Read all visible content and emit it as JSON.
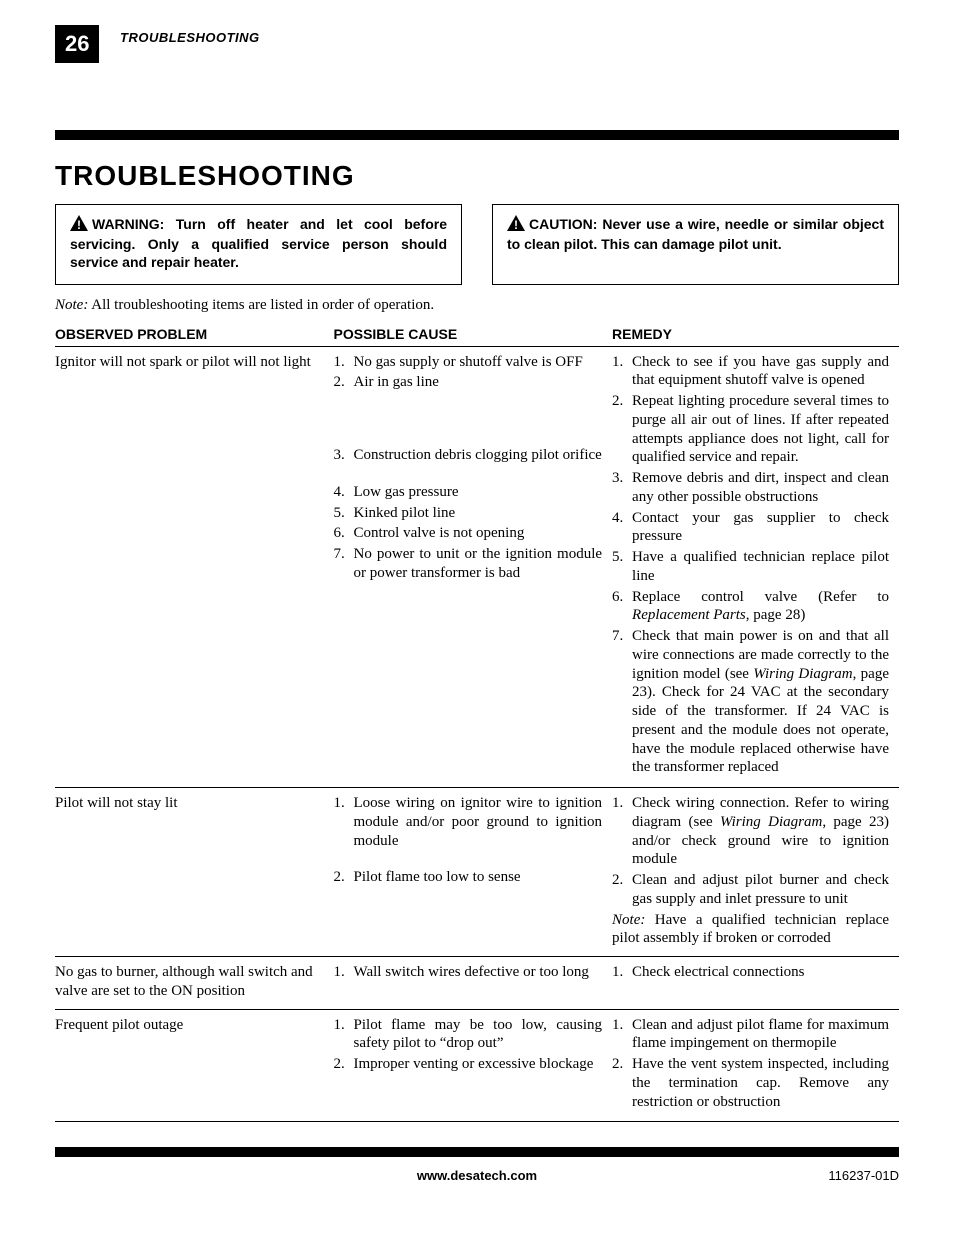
{
  "page": {
    "number": "26",
    "running_head": "TROUBLESHOOTING",
    "section_title": "TROUBLESHOOTING"
  },
  "callouts": {
    "warning_label": "WARNING:",
    "warning_text": "Turn off heater and let cool before servicing. Only a qualified service person should service and repair heater.",
    "caution_label": "CAUTION:",
    "caution_text": "Never use a wire, needle or similar object to clean pilot. This can damage pilot unit."
  },
  "note": {
    "label": "Note:",
    "text": "All troubleshooting items are listed in order of operation."
  },
  "columns": {
    "problem": "OBSERVED PROBLEM",
    "cause": "POSSIBLE CAUSE",
    "remedy": "REMEDY"
  },
  "rows": [
    {
      "problem": "Ignitor will not spark or pilot will not light",
      "causes": [
        "No gas supply or shutoff valve is OFF",
        "Air in gas line",
        "Construction debris clogging pilot orifice",
        "Low gas pressure",
        "Kinked pilot line",
        "Control valve is not opening",
        "No power to unit or the ignition module or power transformer is bad"
      ],
      "cause_gaps": {
        "1": 3,
        "2": 1,
        "3": 0,
        "4": 0,
        "5": 0,
        "6": 0
      },
      "remedies": [
        {
          "text": "Check to see if you have gas supply and that equipment shutoff valve is opened"
        },
        {
          "text": "Repeat lighting procedure several times to purge all air out of lines. If after repeated attempts appliance does not light, call for qualified service and repair."
        },
        {
          "text": "Remove debris and dirt, inspect and clean any other possible obstructions"
        },
        {
          "text": "Contact your gas supplier to check pressure"
        },
        {
          "text": "Have a qualified technician replace pilot line"
        },
        {
          "pre": "Replace control valve (Refer to ",
          "ital": "Replacement Parts",
          "post": ", page 28)"
        },
        {
          "pre": "Check that main power is on and that all wire connections are made correctly to the ignition model (see ",
          "ital": "Wiring Diagram",
          "post": ", page 23). Check for 24 VAC at the secondary side of the transformer. If 24 VAC is present and the module does not operate, have the module replaced otherwise have the transformer replaced"
        }
      ]
    },
    {
      "problem": "Pilot will not stay lit",
      "causes": [
        "Loose wiring on ignitor wire to ignition module and/or poor ground to ignition module",
        "Pilot flame too low to sense"
      ],
      "cause_gaps": {
        "0": 1
      },
      "remedies": [
        {
          "pre": "Check wiring connection. Refer to wiring diagram (see ",
          "ital": "Wiring Diagram",
          "post": ", page 23) and/or check ground wire to ignition module"
        },
        {
          "text": "Clean and adjust pilot burner and check gas supply and inlet pressure to unit"
        }
      ],
      "remedy_note": {
        "label": "Note:",
        "text": "Have a qualified technician replace pilot assembly if broken or corroded"
      }
    },
    {
      "problem": "No gas to burner, although wall switch and valve are set to the ON position",
      "causes": [
        "Wall switch wires defective or too long"
      ],
      "remedies": [
        {
          "text": "Check electrical connections"
        }
      ]
    },
    {
      "problem": "Frequent pilot outage",
      "causes": [
        "Pilot flame may be too low, causing safety pilot to “drop out”",
        "Improper venting or excessive blockage"
      ],
      "remedies": [
        {
          "text": "Clean and adjust pilot flame for maximum flame impingement on thermopile"
        },
        {
          "text": "Have the vent system inspected, including the termination cap. Remove any restriction or obstruction"
        }
      ]
    }
  ],
  "footer": {
    "url": "www.desatech.com",
    "docnum": "116237-01D"
  }
}
